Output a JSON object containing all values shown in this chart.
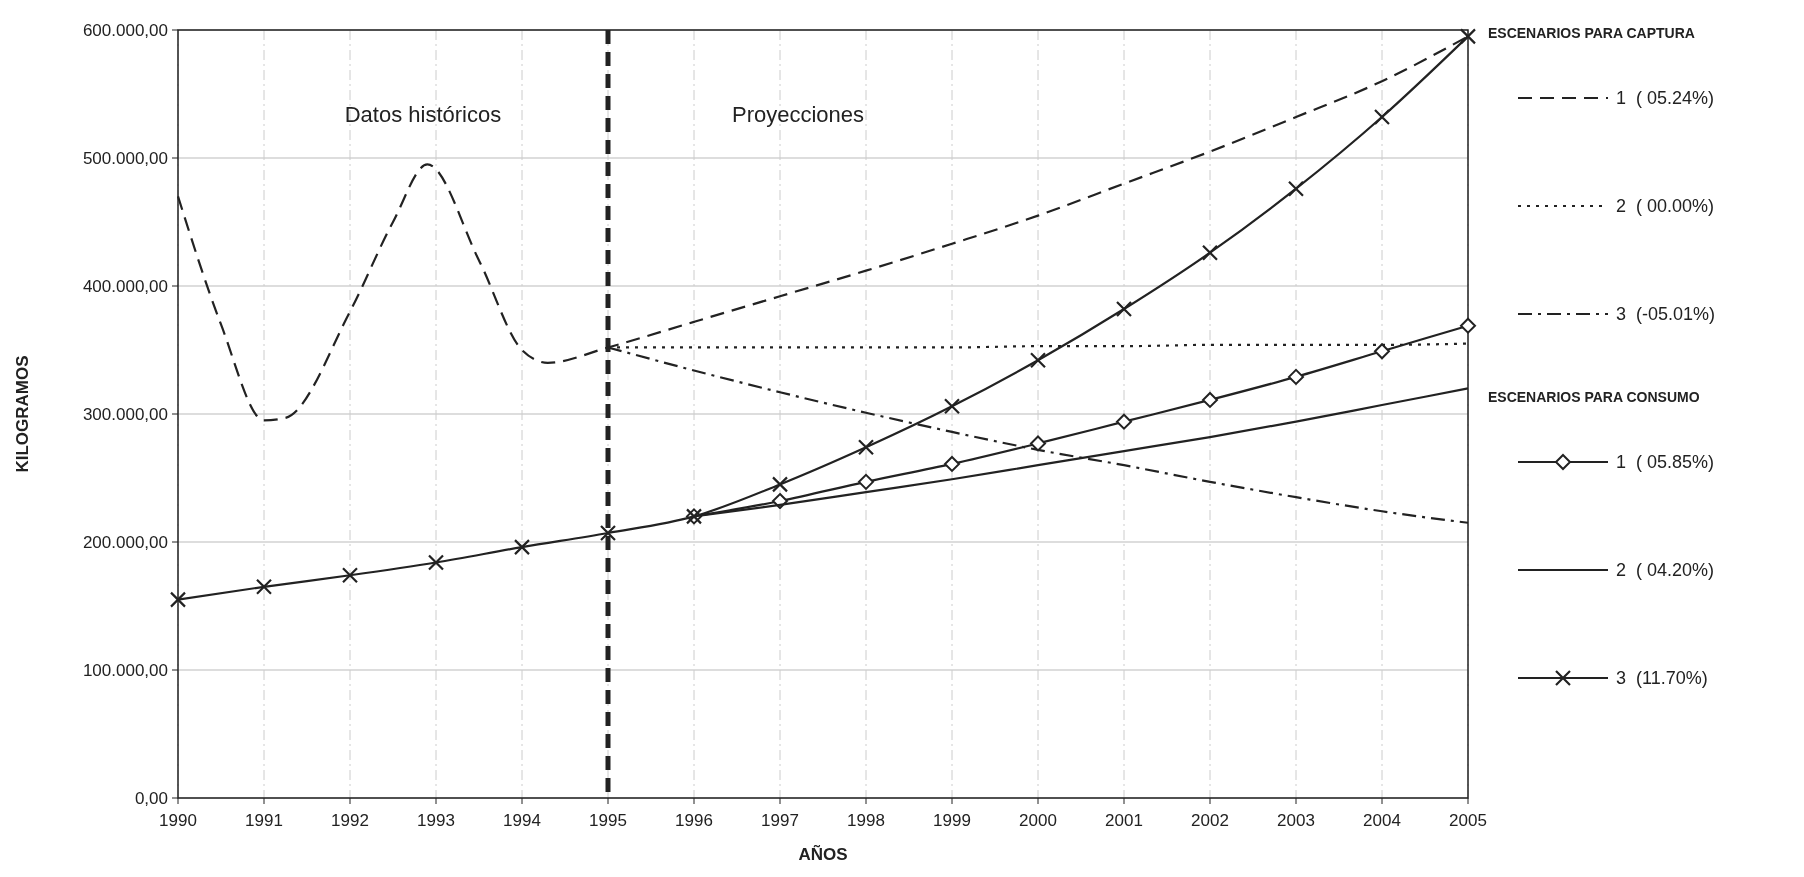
{
  "chart_data": {
    "type": "line",
    "xlabel": "AÑOS",
    "ylabel": "KILOGRAMOS",
    "xlim": [
      1990,
      2005
    ],
    "xticks": [
      1990,
      1991,
      1992,
      1993,
      1994,
      1995,
      1996,
      1997,
      1998,
      1999,
      2000,
      2001,
      2002,
      2003,
      2004,
      2005
    ],
    "ylim": [
      0,
      600000
    ],
    "yticks": [
      {
        "value": 0,
        "label": "0,00"
      },
      {
        "value": 100000,
        "label": "100.000,00"
      },
      {
        "value": 200000,
        "label": "200.000,00"
      },
      {
        "value": 300000,
        "label": "300.000,00"
      },
      {
        "value": 400000,
        "label": "400.000,00"
      },
      {
        "value": 500000,
        "label": "500.000,00"
      },
      {
        "value": 600000,
        "label": "600.000,00"
      }
    ],
    "grid": true,
    "legend": "right",
    "ref_lines": [
      {
        "axis": "x",
        "value": 1995,
        "line_style": "dashed",
        "color": "#222222"
      }
    ],
    "annotations": [
      "Datos históricos",
      "Proyecciones",
      "ESCENARIOS PARA CAPTURA",
      "ESCENARIOS PARA CONSUMO"
    ],
    "series": [
      {
        "name": "1  ( 05.24%)",
        "color": "#222222",
        "line_style": "dashed",
        "marker": "none",
        "x": [
          1990,
          1990.5,
          1991,
          1991.25,
          1992,
          1992.5,
          1992.9,
          1993.5,
          1994,
          1994.3,
          1995,
          1996,
          1997,
          1998,
          1999,
          2000,
          2001,
          2002,
          2003,
          2004,
          2005
        ],
        "values": [
          470000,
          370000,
          295000,
          297000,
          380000,
          450000,
          495000,
          420000,
          350000,
          340000,
          352000,
          372000,
          392000,
          412000,
          433000,
          455000,
          480000,
          505000,
          532000,
          560000,
          595000
        ]
      },
      {
        "name": "2  ( 00.00%)",
        "color": "#222222",
        "line_style": "dotted",
        "marker": "none",
        "x": [
          1995,
          1996,
          1997,
          1998,
          1999,
          2000,
          2001,
          2002,
          2003,
          2004,
          2005
        ],
        "values": [
          352000,
          352000,
          352000,
          352000,
          352000,
          353000,
          353000,
          354000,
          354000,
          354000,
          355000
        ]
      },
      {
        "name": "3  (-05.01%)",
        "color": "#222222",
        "line_style": "dashdot",
        "marker": "none",
        "x": [
          1995,
          1996,
          1997,
          1998,
          1999,
          2000,
          2001,
          2002,
          2003,
          2004,
          2005
        ],
        "values": [
          352000,
          334000,
          317000,
          301000,
          286000,
          272000,
          260000,
          247000,
          235000,
          224000,
          215000
        ]
      },
      {
        "name": "1  ( 05.85%)",
        "color": "#222222",
        "line_style": "solid",
        "marker": "diamond",
        "x": [
          1996,
          1997,
          1998,
          1999,
          2000,
          2001,
          2002,
          2003,
          2004,
          2005
        ],
        "values": [
          220000,
          232000,
          247000,
          261000,
          277000,
          294000,
          311000,
          329000,
          349000,
          369000
        ]
      },
      {
        "name": "2  ( 04.20%)",
        "color": "#222222",
        "line_style": "solid",
        "marker": "none",
        "x": [
          1996,
          1997,
          1998,
          1999,
          2000,
          2001,
          2002,
          2003,
          2004,
          2005
        ],
        "values": [
          220000,
          229000,
          239000,
          249000,
          260000,
          271000,
          282000,
          294000,
          307000,
          320000
        ]
      },
      {
        "name": "3  (11.70%)",
        "color": "#222222",
        "line_style": "solid",
        "marker": "cross",
        "x": [
          1990,
          1991,
          1992,
          1993,
          1994,
          1995,
          1996,
          1997,
          1998,
          1999,
          2000,
          2001,
          2002,
          2003,
          2004,
          2005
        ],
        "values": [
          155000,
          165000,
          174000,
          184000,
          196000,
          207000,
          220000,
          245000,
          274000,
          306000,
          342000,
          382000,
          426000,
          476000,
          532000,
          595000
        ]
      }
    ]
  }
}
